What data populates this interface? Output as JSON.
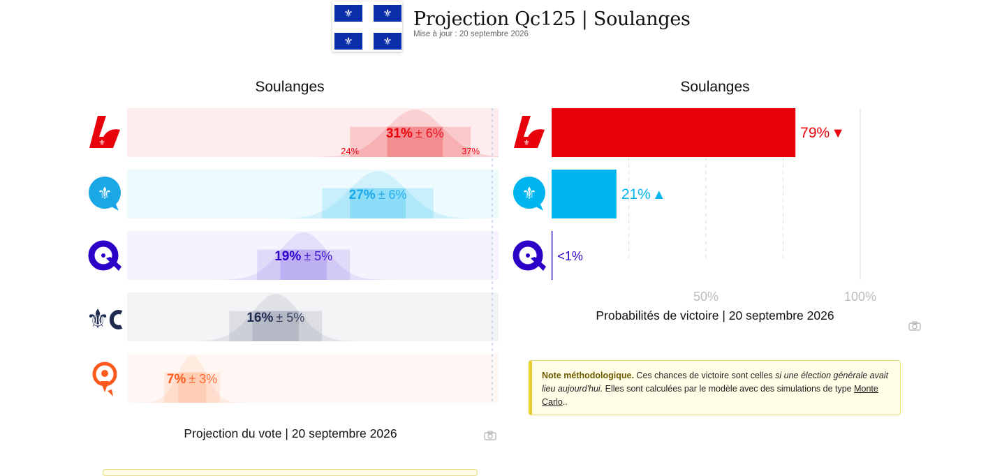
{
  "header": {
    "title": "Projection Qc125 | Soulanges",
    "updated": "Mise à jour : 20 septembre 2026"
  },
  "colors": {
    "plq": "#e8000a",
    "pq": "#00b4f0",
    "caq": "#2d00c8",
    "pcq": "#1e2a4e",
    "qs": "#ff5a1e",
    "flag_blue": "#0a2ea8"
  },
  "chart_data": [
    {
      "type": "range",
      "title": "Soulanges",
      "caption": "Projection du vote | 20 septembre 2026",
      "xlim": [
        0,
        40
      ],
      "series": [
        {
          "party_icon": "plq-logo-icon",
          "value": 31,
          "margin": 6,
          "value_label": "31%",
          "margin_label": "± 6%",
          "low_label": "24%",
          "high_label": "37%",
          "low": 24,
          "high": 37,
          "color": "#e8000a",
          "label_color": "#e8000a"
        },
        {
          "party_icon": "pq-logo-icon",
          "value": 27,
          "margin": 6,
          "value_label": "27%",
          "margin_label": "± 6%",
          "low": 21,
          "high": 33,
          "color": "#00b4f0",
          "label_color": "#1aa7e6"
        },
        {
          "party_icon": "caq-logo-icon",
          "value": 19,
          "margin": 5,
          "value_label": "19%",
          "margin_label": "± 5%",
          "low": 14,
          "high": 24,
          "color": "#6b4ee6",
          "label_color": "#2d00c8"
        },
        {
          "party_icon": "pcq-logo-icon",
          "value": 16,
          "margin": 5,
          "value_label": "16%",
          "margin_label": "± 5%",
          "low": 11,
          "high": 21,
          "color": "#5c6280",
          "label_color": "#1e2a4e"
        },
        {
          "party_icon": "qs-logo-icon",
          "value": 7,
          "margin": 3,
          "value_label": "7%",
          "margin_label": "± 3%",
          "low": 4,
          "high": 10,
          "color": "#ff8a5a",
          "label_color": "#ff5a1e"
        }
      ]
    },
    {
      "type": "bar",
      "title": "Soulanges",
      "caption": "Probabilités de victoire | 20 septembre 2026",
      "xlim": [
        0,
        100
      ],
      "ticks": [
        50,
        100
      ],
      "tick_labels": [
        "50%",
        "100%"
      ],
      "series": [
        {
          "party_icon": "plq-logo-icon",
          "value": 79,
          "label": "79%",
          "trend": "▼",
          "color": "#e8000a"
        },
        {
          "party_icon": "pq-logo-icon",
          "value": 21,
          "label": "21%",
          "trend": "▲",
          "color": "#00b4f0"
        },
        {
          "party_icon": "caq-logo-icon",
          "value": 0.3,
          "label": "<1%",
          "trend": "",
          "color": "#2d00c8"
        }
      ]
    }
  ],
  "note": {
    "bold": "Note méthodologique.",
    "text1": "Ces chances de victoire sont celles",
    "italic": "si une élection générale avait lieu aujourd'hui.",
    "text2": "Elles sont calculées par le modèle avec des simulations de type",
    "link": "Monte Carlo",
    "end": ".."
  }
}
